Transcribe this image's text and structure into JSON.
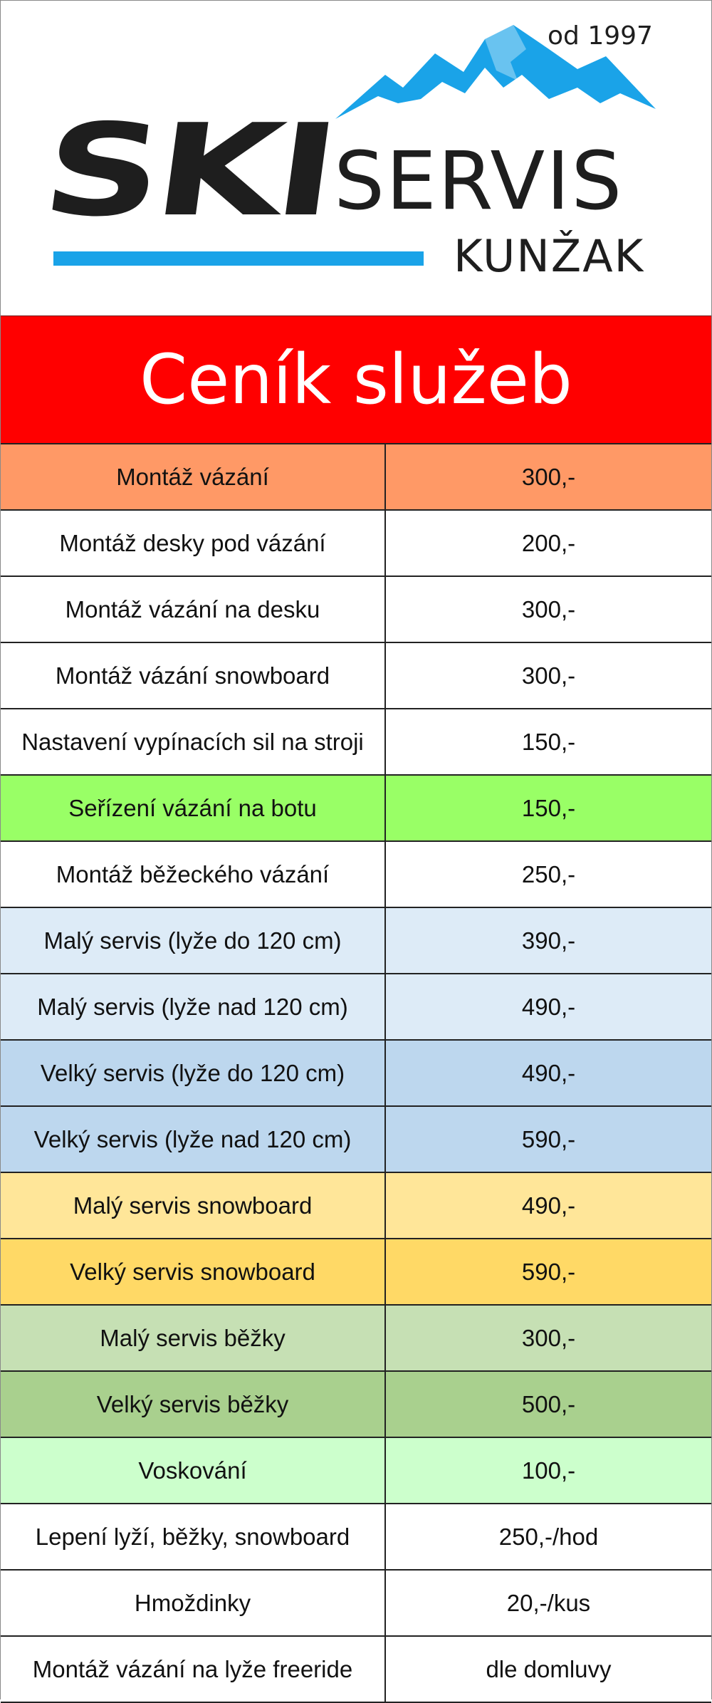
{
  "logo": {
    "ski": "SKI",
    "servis": "SERVIS",
    "place": "KUNŽAK",
    "since": "od 1997",
    "accent_color": "#1aa3e8",
    "mountain_icon": "mountain-icon"
  },
  "title": "Ceník služeb",
  "rows": [
    {
      "service": "Montáž vázání",
      "price": "300,-",
      "color": "#ff9966"
    },
    {
      "service": "Montáž desky pod vázání",
      "price": "200,-",
      "color": "#ffffff"
    },
    {
      "service": "Montáž vázání na desku",
      "price": "300,-",
      "color": "#ffffff"
    },
    {
      "service": "Montáž vázání snowboard",
      "price": "300,-",
      "color": "#ffffff"
    },
    {
      "service": "Nastavení vypínacích sil na stroji",
      "price": "150,-",
      "color": "#ffffff"
    },
    {
      "service": "Seřízení vázání na botu",
      "price": "150,-",
      "color": "#99ff66"
    },
    {
      "service": "Montáž běžeckého vázání",
      "price": "250,-",
      "color": "#ffffff"
    },
    {
      "service": "Malý servis (lyže do 120 cm)",
      "price": "390,-",
      "color": "#ddebf7"
    },
    {
      "service": "Malý servis (lyže nad 120 cm)",
      "price": "490,-",
      "color": "#ddebf7"
    },
    {
      "service": "Velký servis (lyže do 120 cm)",
      "price": "490,-",
      "color": "#bdd7ee"
    },
    {
      "service": "Velký servis (lyže nad 120 cm)",
      "price": "590,-",
      "color": "#bdd7ee"
    },
    {
      "service": "Malý servis snowboard",
      "price": "490,-",
      "color": "#ffe699"
    },
    {
      "service": "Velký servis snowboard",
      "price": "590,-",
      "color": "#ffd966"
    },
    {
      "service": "Malý servis běžky",
      "price": "300,-",
      "color": "#c6e0b4"
    },
    {
      "service": "Velký servis běžky",
      "price": "500,-",
      "color": "#a9d08e"
    },
    {
      "service": "Voskování",
      "price": "100,-",
      "color": "#ccffcc"
    },
    {
      "service": "Lepení lyží, běžky, snowboard",
      "price": "250,-/hod",
      "color": "#ffffff"
    },
    {
      "service": "Hmoždinky",
      "price": "20,-/kus",
      "color": "#ffffff"
    },
    {
      "service": "Montáž vázání na lyže freeride",
      "price": "dle domluvy",
      "color": "#ffffff"
    }
  ]
}
